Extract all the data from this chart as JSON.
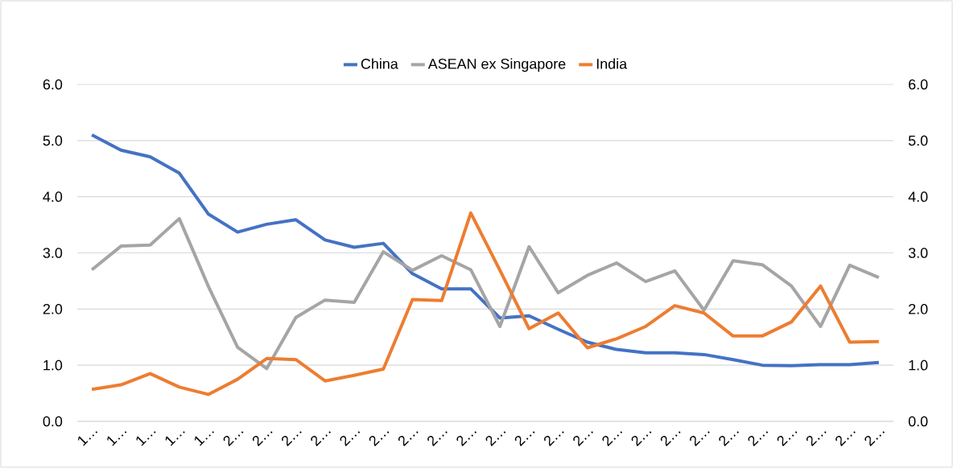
{
  "chart_data": {
    "type": "line",
    "categories": [
      "1…",
      "1…",
      "1…",
      "1…",
      "1…",
      "2…",
      "2…",
      "2…",
      "2…",
      "2…",
      "2…",
      "2…",
      "2…",
      "2…",
      "2…",
      "2…",
      "2…",
      "2…",
      "2…",
      "2…",
      "2…",
      "2…",
      "2…",
      "2…",
      "2…",
      "2…",
      "2…",
      "2…"
    ],
    "series": [
      {
        "name": "China",
        "color": "#4472c4",
        "values": [
          5.1,
          4.83,
          4.71,
          4.42,
          3.69,
          3.37,
          3.51,
          3.59,
          3.23,
          3.1,
          3.17,
          2.63,
          2.36,
          2.36,
          1.84,
          1.88,
          1.64,
          1.41,
          1.28,
          1.22,
          1.22,
          1.19,
          1.1,
          1.0,
          0.99,
          1.01,
          1.01,
          1.05
        ]
      },
      {
        "name": "ASEAN ex Singapore",
        "color": "#a5a5a5",
        "values": [
          2.7,
          3.12,
          3.14,
          3.61,
          2.4,
          1.32,
          0.94,
          1.85,
          2.16,
          2.12,
          3.02,
          2.69,
          2.95,
          2.7,
          1.69,
          3.11,
          2.29,
          2.6,
          2.82,
          2.49,
          2.68,
          1.98,
          2.86,
          2.79,
          2.41,
          1.69,
          2.78,
          2.56
        ]
      },
      {
        "name": "India",
        "color": "#ed7d31",
        "values": [
          0.57,
          0.65,
          0.85,
          0.61,
          0.48,
          0.75,
          1.12,
          1.1,
          0.72,
          0.82,
          0.93,
          2.17,
          2.15,
          3.71,
          2.69,
          1.65,
          1.93,
          1.31,
          1.47,
          1.69,
          2.06,
          1.93,
          1.52,
          1.52,
          1.77,
          2.41,
          1.41,
          1.42
        ]
      }
    ],
    "ylim": [
      0,
      6
    ],
    "yticks": [
      {
        "value": 0,
        "label": "0.0"
      },
      {
        "value": 1,
        "label": "1.0"
      },
      {
        "value": 2,
        "label": "2.0"
      },
      {
        "value": 3,
        "label": "3.0"
      },
      {
        "value": 4,
        "label": "4.0"
      },
      {
        "value": 5,
        "label": "5.0"
      },
      {
        "value": 6,
        "label": "6.0"
      }
    ],
    "y2lim": [
      0,
      6
    ],
    "y2ticks": [
      {
        "value": 0,
        "label": "0.0"
      },
      {
        "value": 1,
        "label": "1.0"
      },
      {
        "value": 2,
        "label": "2.0"
      },
      {
        "value": 3,
        "label": "3.0"
      },
      {
        "value": 4,
        "label": "4.0"
      },
      {
        "value": 5,
        "label": "5.0"
      },
      {
        "value": 6,
        "label": "6.0"
      }
    ],
    "grid": "y",
    "legend": "top",
    "marker": "none",
    "line_style": "solid"
  }
}
